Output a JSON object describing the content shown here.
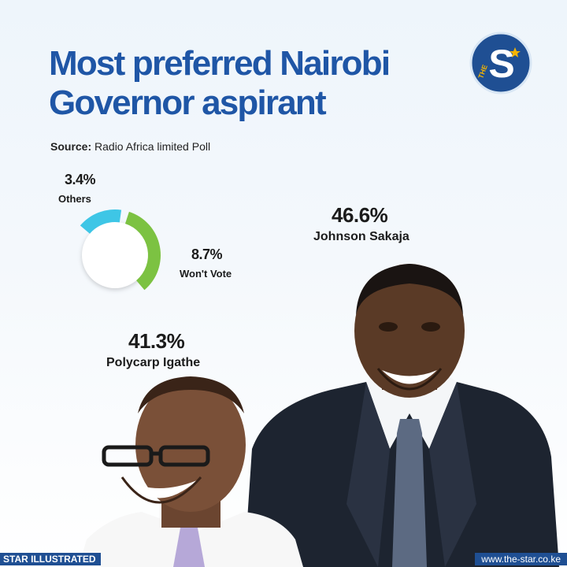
{
  "title": {
    "line1": "Most preferred Nairobi",
    "line2": "Governor aspirant"
  },
  "source": {
    "label": "Source:",
    "text": "Radio Africa limited Poll"
  },
  "logo": {
    "letter": "S",
    "small_text": "THE"
  },
  "footer": {
    "left": "STAR ILLUSTRATED",
    "right": "www.the-star.co.ke"
  },
  "chart_data": {
    "type": "pie",
    "title": "Most preferred Nairobi Governor aspirant",
    "slices": [
      {
        "label": "Johnson Sakaja",
        "value": 46.6,
        "display": "46.6%"
      },
      {
        "label": "Polycarp Igathe",
        "value": 41.3,
        "display": "41.3%"
      },
      {
        "label": "Won't Vote",
        "value": 8.7,
        "display": "8.7%"
      },
      {
        "label": "Others",
        "value": 3.4,
        "display": "3.4%"
      }
    ],
    "colors": {
      "others": "#3ec6e6",
      "wont_vote": "#7cc242"
    }
  }
}
